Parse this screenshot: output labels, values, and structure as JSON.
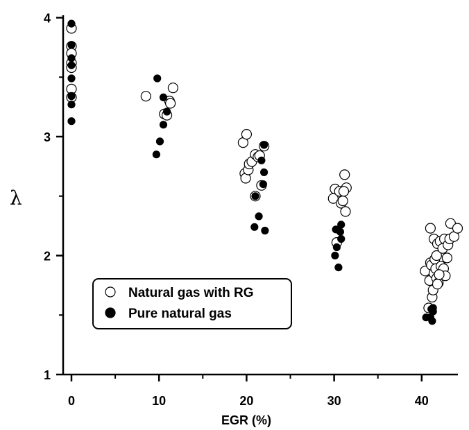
{
  "chart_data": {
    "type": "scatter",
    "title": "",
    "xlabel": "EGR (%)",
    "ylabel": "λ",
    "xlim": [
      -2,
      45
    ],
    "ylim": [
      1,
      4
    ],
    "xticks": [
      0,
      10,
      20,
      30,
      40
    ],
    "yticks": [
      1,
      2,
      3,
      4
    ],
    "grid": false,
    "legend_position": "lower-left",
    "series": [
      {
        "name": "Natural gas with RG",
        "marker": "open-circle",
        "color": "#000000",
        "points": [
          [
            0,
            3.91
          ],
          [
            0,
            3.76
          ],
          [
            0,
            3.7
          ],
          [
            0,
            3.62
          ],
          [
            0,
            3.58
          ],
          [
            0,
            3.4
          ],
          [
            0,
            3.33
          ],
          [
            8.5,
            3.34
          ],
          [
            10.6,
            3.19
          ],
          [
            10.9,
            3.18
          ],
          [
            11.2,
            3.3
          ],
          [
            11.3,
            3.28
          ],
          [
            11.6,
            3.41
          ],
          [
            19.6,
            2.95
          ],
          [
            20.0,
            3.02
          ],
          [
            19.8,
            2.69
          ],
          [
            19.9,
            2.65
          ],
          [
            20.2,
            2.72
          ],
          [
            20.3,
            2.77
          ],
          [
            20.6,
            2.79
          ],
          [
            21.0,
            2.85
          ],
          [
            21.3,
            2.83
          ],
          [
            21.5,
            2.84
          ],
          [
            21.0,
            2.5
          ],
          [
            21.7,
            2.59
          ],
          [
            22.0,
            2.92
          ],
          [
            29.9,
            2.48
          ],
          [
            30.1,
            2.56
          ],
          [
            30.6,
            2.54
          ],
          [
            30.8,
            2.44
          ],
          [
            30.3,
            2.11
          ],
          [
            31.0,
            2.46
          ],
          [
            31.2,
            2.68
          ],
          [
            31.4,
            2.57
          ],
          [
            31.3,
            2.37
          ],
          [
            31.1,
            2.54
          ],
          [
            40.4,
            1.87
          ],
          [
            40.8,
            1.56
          ],
          [
            40.9,
            1.79
          ],
          [
            41.0,
            1.94
          ],
          [
            41.0,
            2.23
          ],
          [
            41.1,
            1.92
          ],
          [
            41.2,
            1.65
          ],
          [
            41.3,
            1.71
          ],
          [
            41.4,
            1.85
          ],
          [
            41.4,
            2.14
          ],
          [
            41.5,
            1.97
          ],
          [
            41.6,
            1.89
          ],
          [
            41.7,
            2.0
          ],
          [
            41.7,
            1.81
          ],
          [
            41.8,
            2.1
          ],
          [
            41.9,
            1.77
          ],
          [
            42.1,
            2.12
          ],
          [
            42.2,
            1.91
          ],
          [
            42.4,
            2.06
          ],
          [
            42.5,
            1.89
          ],
          [
            42.6,
            2.14
          ],
          [
            42.7,
            1.83
          ],
          [
            42.9,
            1.98
          ],
          [
            43.0,
            2.09
          ],
          [
            43.2,
            2.14
          ],
          [
            43.3,
            2.27
          ],
          [
            43.7,
            2.16
          ],
          [
            44.1,
            2.23
          ],
          [
            41.8,
            1.76
          ],
          [
            42.0,
            1.84
          ]
        ]
      },
      {
        "name": "Pure natural gas",
        "marker": "filled-circle",
        "color": "#000000",
        "points": [
          [
            0,
            3.95
          ],
          [
            0,
            3.77
          ],
          [
            0,
            3.66
          ],
          [
            0,
            3.6
          ],
          [
            0,
            3.49
          ],
          [
            0,
            3.34
          ],
          [
            0,
            3.27
          ],
          [
            0,
            3.13
          ],
          [
            9.8,
            3.49
          ],
          [
            10.5,
            3.33
          ],
          [
            10.9,
            3.21
          ],
          [
            10.5,
            3.1
          ],
          [
            10.1,
            2.96
          ],
          [
            9.7,
            2.85
          ],
          [
            22.0,
            2.93
          ],
          [
            21.7,
            2.8
          ],
          [
            22.0,
            2.7
          ],
          [
            21.9,
            2.6
          ],
          [
            21.0,
            2.5
          ],
          [
            21.4,
            2.33
          ],
          [
            20.9,
            2.24
          ],
          [
            22.1,
            2.21
          ],
          [
            30.8,
            2.26
          ],
          [
            30.2,
            2.22
          ],
          [
            30.7,
            2.2
          ],
          [
            30.8,
            2.14
          ],
          [
            30.3,
            2.07
          ],
          [
            30.1,
            2.0
          ],
          [
            30.5,
            1.9
          ],
          [
            40.5,
            1.48
          ],
          [
            41.0,
            1.48
          ],
          [
            41.2,
            1.45
          ],
          [
            41.3,
            1.53
          ],
          [
            41.3,
            1.56
          ],
          [
            41.1,
            1.55
          ]
        ]
      }
    ]
  }
}
